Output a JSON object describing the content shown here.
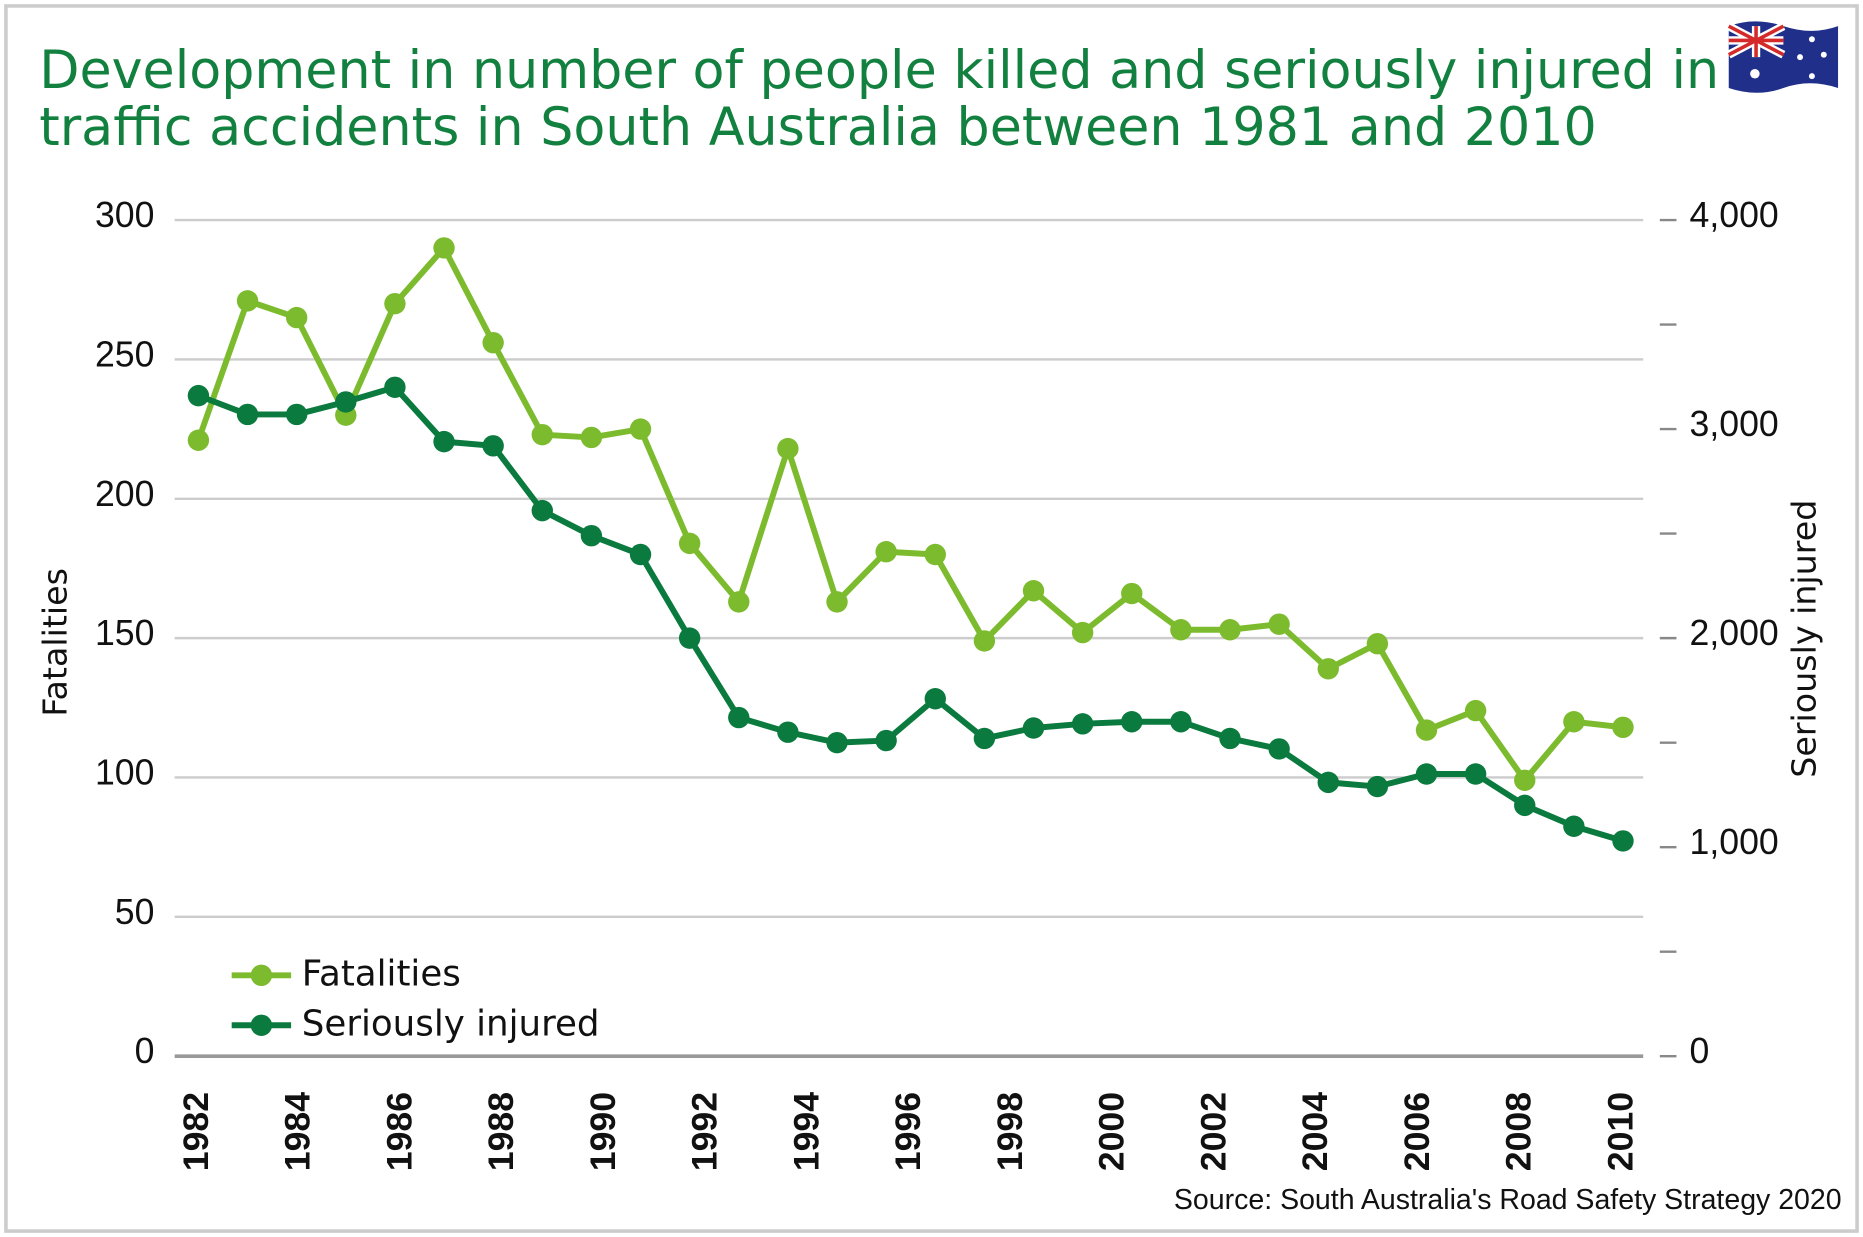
{
  "chart_data": {
    "type": "line",
    "title": "Development in number of people killed and seriously injured in",
    "subtitle": "traffic accidents in South Australia between 1981 and 2010",
    "ylabel": "Fatalities",
    "y2label": "Seriously injured",
    "source": "Source: South Australia's Road Safety Strategy 2020",
    "xlim": [
      1982,
      2010
    ],
    "xticks": [
      1982,
      1984,
      1986,
      1988,
      1990,
      1992,
      1994,
      1996,
      1998,
      2000,
      2002,
      2004,
      2006,
      2008,
      2010
    ],
    "ylim": [
      0,
      300
    ],
    "yticks": [
      0,
      50,
      100,
      150,
      200,
      250,
      300
    ],
    "y2lim": [
      0,
      4000
    ],
    "y2ticks": [
      0,
      500,
      {
        "value": 1000,
        "label": "1,000"
      },
      1500,
      {
        "value": 2000,
        "label": "2,000"
      },
      2500,
      {
        "value": 3000,
        "label": "3,000"
      },
      3500,
      {
        "value": 4000,
        "label": "4,000"
      }
    ],
    "y2_labeled": [
      true,
      false,
      true,
      false,
      true,
      false,
      true,
      false,
      true
    ],
    "grid": true,
    "legend": "lower left",
    "series": [
      {
        "name": "Fatalities",
        "color": "#7dbb2e",
        "values": [
          221,
          271,
          265,
          230,
          270,
          290,
          256,
          223,
          222,
          225,
          184,
          163,
          218,
          163,
          181,
          180,
          149,
          167,
          152,
          166,
          153,
          153,
          155,
          139,
          148,
          117,
          124,
          99,
          120,
          118
        ]
      },
      {
        "name": "Seriously injured",
        "color": "#0a7a3e",
        "axis": "y2",
        "values": [
          3160,
          3070,
          3070,
          3130,
          3200,
          2940,
          2920,
          2610,
          2490,
          2400,
          2000,
          1620,
          1550,
          1500,
          1510,
          1710,
          1520,
          1570,
          1590,
          1600,
          1600,
          1520,
          1470,
          1310,
          1290,
          1350,
          1350,
          1200,
          1100,
          1030
        ]
      }
    ]
  }
}
